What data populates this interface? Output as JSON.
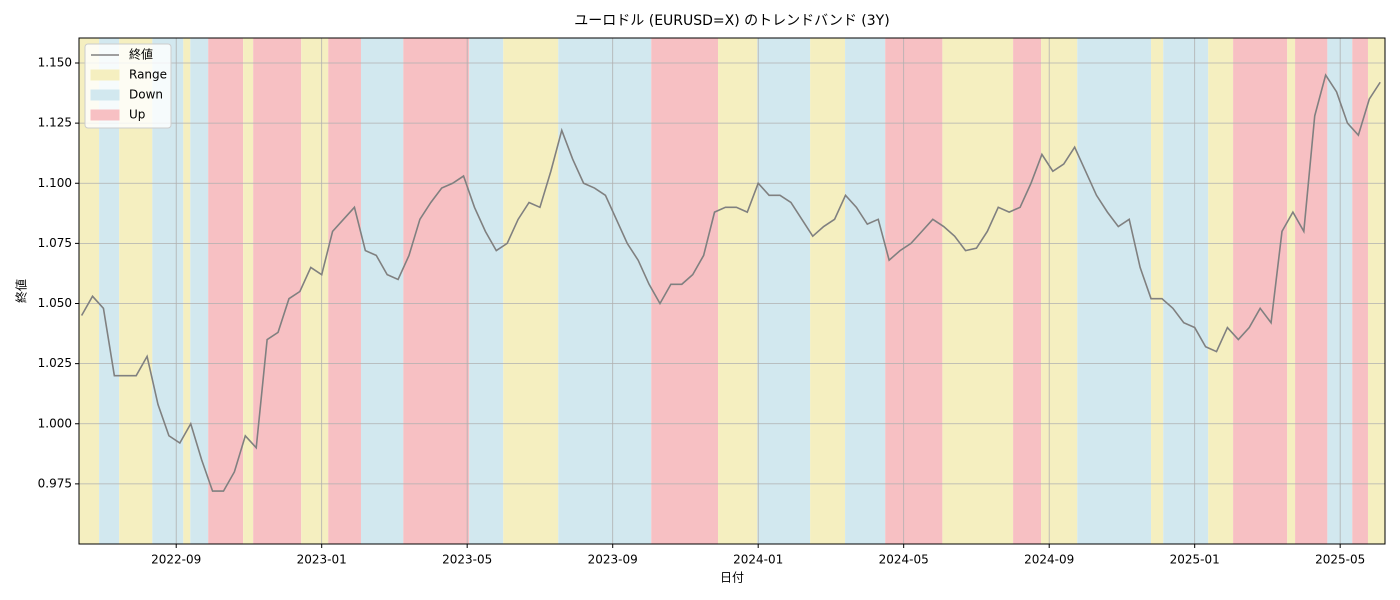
{
  "chart_data": {
    "type": "line",
    "title": "ユーロドル (EURUSD=X) のトレンドバンド (3Y)",
    "xlabel": "日付",
    "ylabel": "終値",
    "xlim": [
      2022.444,
      2025.436
    ],
    "ylim": [
      0.95,
      1.1604
    ],
    "grid": true,
    "legend_position": "upper left",
    "xticks": [
      {
        "value": 2022.6667,
        "label": "2022-09"
      },
      {
        "value": 2023,
        "label": "2023-01"
      },
      {
        "value": 2023.3333,
        "label": "2023-05"
      },
      {
        "value": 2023.6667,
        "label": "2023-09"
      },
      {
        "value": 2024,
        "label": "2024-01"
      },
      {
        "value": 2024.3333,
        "label": "2024-05"
      },
      {
        "value": 2024.6667,
        "label": "2024-09"
      },
      {
        "value": 2025,
        "label": "2025-01"
      },
      {
        "value": 2025.3333,
        "label": "2025-05"
      }
    ],
    "yticks": [
      0.975,
      {
        "value": 1.0,
        "label": "1.000"
      },
      1.025,
      {
        "value": 1.05,
        "label": "1.050"
      },
      1.075,
      {
        "value": 1.1,
        "label": "1.100"
      },
      1.125,
      {
        "value": 1.15,
        "label": "1.150"
      }
    ],
    "regimes": [
      {
        "name": "Range",
        "color": "#f5efc0"
      },
      {
        "name": "Down",
        "color": "#d2e8ef"
      },
      {
        "name": "Up",
        "color": "#f7c0c3"
      }
    ],
    "bands": [
      {
        "start": 2022.444,
        "end": 2022.49,
        "regime": "Range"
      },
      {
        "start": 2022.49,
        "end": 2022.536,
        "regime": "Down"
      },
      {
        "start": 2022.536,
        "end": 2022.612,
        "regime": "Range"
      },
      {
        "start": 2022.612,
        "end": 2022.683,
        "regime": "Down"
      },
      {
        "start": 2022.683,
        "end": 2022.699,
        "regime": "Range"
      },
      {
        "start": 2022.699,
        "end": 2022.74,
        "regime": "Down"
      },
      {
        "start": 2022.74,
        "end": 2022.82,
        "regime": "Up"
      },
      {
        "start": 2022.82,
        "end": 2022.843,
        "regime": "Range"
      },
      {
        "start": 2022.843,
        "end": 2022.953,
        "regime": "Up"
      },
      {
        "start": 2022.953,
        "end": 2023.015,
        "regime": "Range"
      },
      {
        "start": 2023.015,
        "end": 2023.09,
        "regime": "Up"
      },
      {
        "start": 2023.09,
        "end": 2023.187,
        "regime": "Down"
      },
      {
        "start": 2023.187,
        "end": 2023.338,
        "regime": "Up"
      },
      {
        "start": 2023.338,
        "end": 2023.416,
        "regime": "Down"
      },
      {
        "start": 2023.416,
        "end": 2023.542,
        "regime": "Range"
      },
      {
        "start": 2023.542,
        "end": 2023.755,
        "regime": "Down"
      },
      {
        "start": 2023.755,
        "end": 2023.908,
        "regime": "Up"
      },
      {
        "start": 2023.908,
        "end": 2023.998,
        "regime": "Range"
      },
      {
        "start": 2023.998,
        "end": 2024.119,
        "regime": "Down"
      },
      {
        "start": 2024.119,
        "end": 2024.199,
        "regime": "Range"
      },
      {
        "start": 2024.199,
        "end": 2024.291,
        "regime": "Down"
      },
      {
        "start": 2024.291,
        "end": 2024.422,
        "regime": "Up"
      },
      {
        "start": 2024.422,
        "end": 2024.584,
        "regime": "Range"
      },
      {
        "start": 2024.584,
        "end": 2024.648,
        "regime": "Up"
      },
      {
        "start": 2024.648,
        "end": 2024.731,
        "regime": "Range"
      },
      {
        "start": 2024.731,
        "end": 2024.9,
        "regime": "Down"
      },
      {
        "start": 2024.9,
        "end": 2024.928,
        "regime": "Range"
      },
      {
        "start": 2024.928,
        "end": 2025.031,
        "regime": "Down"
      },
      {
        "start": 2025.031,
        "end": 2025.088,
        "regime": "Range"
      },
      {
        "start": 2025.088,
        "end": 2025.212,
        "regime": "Up"
      },
      {
        "start": 2025.212,
        "end": 2025.23,
        "regime": "Range"
      },
      {
        "start": 2025.23,
        "end": 2025.304,
        "regime": "Up"
      },
      {
        "start": 2025.304,
        "end": 2025.361,
        "regime": "Down"
      },
      {
        "start": 2025.361,
        "end": 2025.397,
        "regime": "Up"
      },
      {
        "start": 2025.397,
        "end": 2025.436,
        "regime": "Range"
      }
    ],
    "x": [
      2022.45,
      2022.475,
      2022.5,
      2022.525,
      2022.55,
      2022.575,
      2022.6,
      2022.625,
      2022.65,
      2022.675,
      2022.7,
      2022.725,
      2022.75,
      2022.775,
      2022.8,
      2022.825,
      2022.85,
      2022.875,
      2022.9,
      2022.925,
      2022.95,
      2022.975,
      2023.0,
      2023.025,
      2023.05,
      2023.075,
      2023.1,
      2023.125,
      2023.15,
      2023.175,
      2023.2,
      2023.225,
      2023.25,
      2023.275,
      2023.3,
      2023.325,
      2023.35,
      2023.375,
      2023.4,
      2023.425,
      2023.45,
      2023.475,
      2023.5,
      2023.525,
      2023.55,
      2023.575,
      2023.6,
      2023.625,
      2023.65,
      2023.675,
      2023.7,
      2023.725,
      2023.75,
      2023.775,
      2023.8,
      2023.825,
      2023.85,
      2023.875,
      2023.9,
      2023.925,
      2023.95,
      2023.975,
      2024.0,
      2024.025,
      2024.05,
      2024.075,
      2024.1,
      2024.125,
      2024.15,
      2024.175,
      2024.2,
      2024.225,
      2024.25,
      2024.275,
      2024.3,
      2024.325,
      2024.35,
      2024.375,
      2024.4,
      2024.425,
      2024.45,
      2024.475,
      2024.5,
      2024.525,
      2024.55,
      2024.575,
      2024.6,
      2024.625,
      2024.65,
      2024.675,
      2024.7,
      2024.725,
      2024.75,
      2024.775,
      2024.8,
      2024.825,
      2024.85,
      2024.875,
      2024.9,
      2024.925,
      2024.95,
      2024.975,
      2025.0,
      2025.025,
      2025.05,
      2025.075,
      2025.1,
      2025.125,
      2025.15,
      2025.175,
      2025.2,
      2025.225,
      2025.25,
      2025.275,
      2025.3,
      2025.325,
      2025.35,
      2025.375,
      2025.4,
      2025.425
    ],
    "series": [
      {
        "name": "終値",
        "color": "#808080",
        "values": [
          1.045,
          1.053,
          1.048,
          1.02,
          1.02,
          1.02,
          1.028,
          1.008,
          0.995,
          0.992,
          1.0,
          0.985,
          0.972,
          0.972,
          0.98,
          0.995,
          0.99,
          1.035,
          1.038,
          1.052,
          1.055,
          1.065,
          1.062,
          1.08,
          1.085,
          1.09,
          1.072,
          1.07,
          1.062,
          1.06,
          1.07,
          1.085,
          1.092,
          1.098,
          1.1,
          1.103,
          1.09,
          1.08,
          1.072,
          1.075,
          1.085,
          1.092,
          1.09,
          1.105,
          1.122,
          1.11,
          1.1,
          1.098,
          1.095,
          1.085,
          1.075,
          1.068,
          1.058,
          1.05,
          1.058,
          1.058,
          1.062,
          1.07,
          1.088,
          1.09,
          1.09,
          1.088,
          1.1,
          1.095,
          1.095,
          1.092,
          1.085,
          1.078,
          1.082,
          1.085,
          1.095,
          1.09,
          1.083,
          1.085,
          1.068,
          1.072,
          1.075,
          1.08,
          1.085,
          1.082,
          1.078,
          1.072,
          1.073,
          1.08,
          1.09,
          1.088,
          1.09,
          1.1,
          1.112,
          1.105,
          1.108,
          1.115,
          1.105,
          1.095,
          1.088,
          1.082,
          1.085,
          1.065,
          1.052,
          1.052,
          1.048,
          1.042,
          1.04,
          1.032,
          1.03,
          1.04,
          1.035,
          1.04,
          1.048,
          1.042,
          1.08,
          1.088,
          1.08,
          1.128,
          1.145,
          1.138,
          1.125,
          1.12,
          1.135,
          1.142
        ]
      }
    ]
  }
}
